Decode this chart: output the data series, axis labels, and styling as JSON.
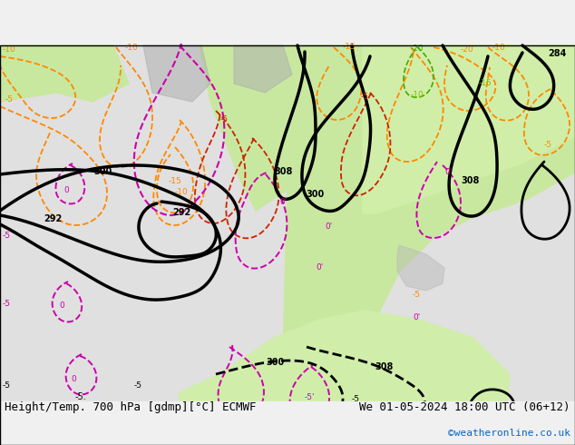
{
  "title_left": "Height/Temp. 700 hPa [gdmp][°C] ECMWF",
  "title_right": "We 01-05-2024 18:00 UTC (06+12)",
  "credit": "©weatheronline.co.uk",
  "title_fontsize": 9,
  "credit_fontsize": 8,
  "credit_color": "#0066cc"
}
